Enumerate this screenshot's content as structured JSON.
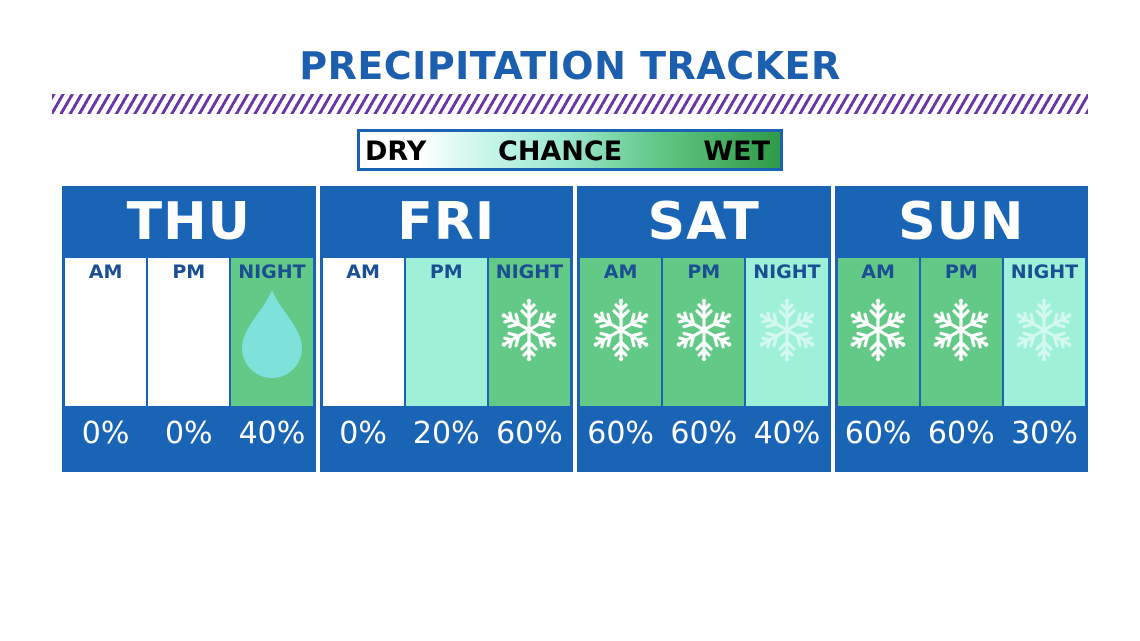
{
  "title": "PRECIPITATION TRACKER",
  "legend": {
    "dry": "DRY",
    "chance": "CHANCE",
    "wet": "WET"
  },
  "colors": {
    "frame_blue": "#1a64b5",
    "title_blue": "#1b5fae",
    "stripe_purple": "#6a35a8",
    "dry": "#ffffff",
    "low_chance": "#9ff0d8",
    "mid_chance": "#62c986"
  },
  "days": [
    {
      "name": "THU",
      "periods": [
        {
          "label": "AM",
          "chance": "0%",
          "fill": "#ffffff",
          "icon": "none"
        },
        {
          "label": "PM",
          "chance": "0%",
          "fill": "#ffffff",
          "icon": "none"
        },
        {
          "label": "NIGHT",
          "chance": "40%",
          "fill": "#62c986",
          "icon": "raindrop-icon"
        }
      ]
    },
    {
      "name": "FRI",
      "periods": [
        {
          "label": "AM",
          "chance": "0%",
          "fill": "#ffffff",
          "icon": "none"
        },
        {
          "label": "PM",
          "chance": "20%",
          "fill": "#9ff0d8",
          "icon": "none"
        },
        {
          "label": "NIGHT",
          "chance": "60%",
          "fill": "#62c986",
          "icon": "snowflake-icon"
        }
      ]
    },
    {
      "name": "SAT",
      "periods": [
        {
          "label": "AM",
          "chance": "60%",
          "fill": "#62c986",
          "icon": "snowflake-icon"
        },
        {
          "label": "PM",
          "chance": "60%",
          "fill": "#62c986",
          "icon": "snowflake-icon"
        },
        {
          "label": "NIGHT",
          "chance": "40%",
          "fill": "#9ff0d8",
          "icon": "snowflake-faint-icon"
        }
      ]
    },
    {
      "name": "SUN",
      "periods": [
        {
          "label": "AM",
          "chance": "60%",
          "fill": "#62c986",
          "icon": "snowflake-icon"
        },
        {
          "label": "PM",
          "chance": "60%",
          "fill": "#62c986",
          "icon": "snowflake-icon"
        },
        {
          "label": "NIGHT",
          "chance": "30%",
          "fill": "#9ff0d8",
          "icon": "snowflake-faint-icon"
        }
      ]
    }
  ]
}
